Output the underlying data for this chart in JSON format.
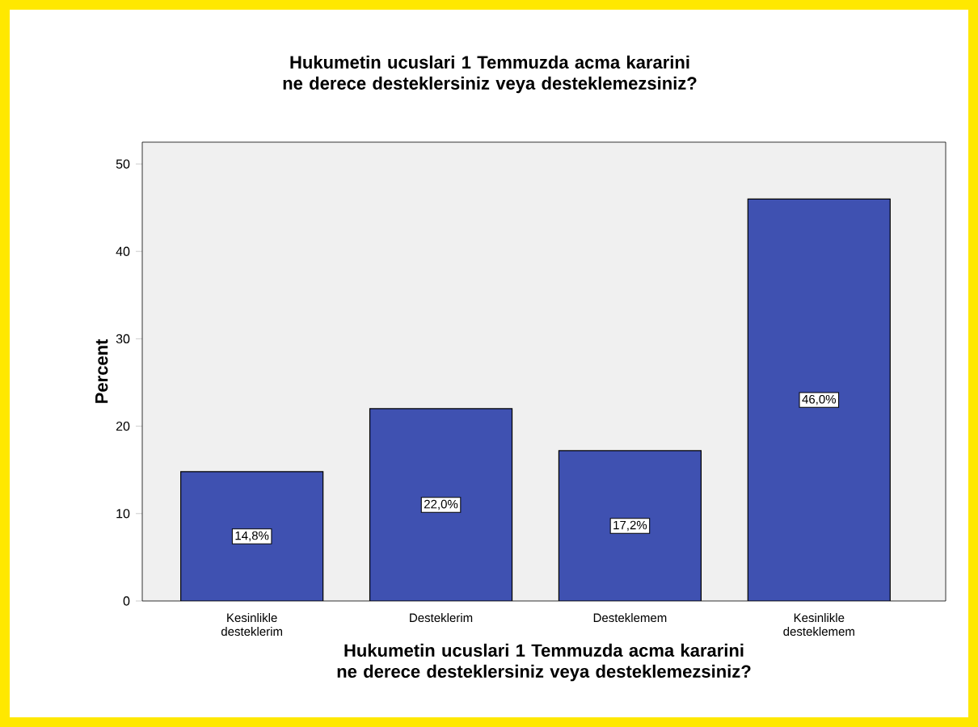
{
  "chart_data": {
    "type": "bar",
    "title": "Hukumetin ucuslari 1 Temmuzda acma kararini ne derece desteklersiniz veya desteklemezsiniz?",
    "xlabel": "Hukumetin ucuslari 1 Temmuzda acma kararini ne derece desteklersiniz veya desteklemezsiniz?",
    "ylabel": "Percent",
    "categories": [
      "Kesinlikle desteklerim",
      "Desteklerim",
      "Desteklemem",
      "Kesinlikle desteklemem"
    ],
    "values": [
      14.8,
      22.0,
      17.2,
      46.0
    ],
    "value_labels": [
      "14,8%",
      "22,0%",
      "17,2%",
      "46,0%"
    ],
    "color": "#3f51b1",
    "ylim": [
      0,
      52.5
    ],
    "yticks": [
      0,
      10,
      20,
      30,
      40,
      50
    ]
  }
}
